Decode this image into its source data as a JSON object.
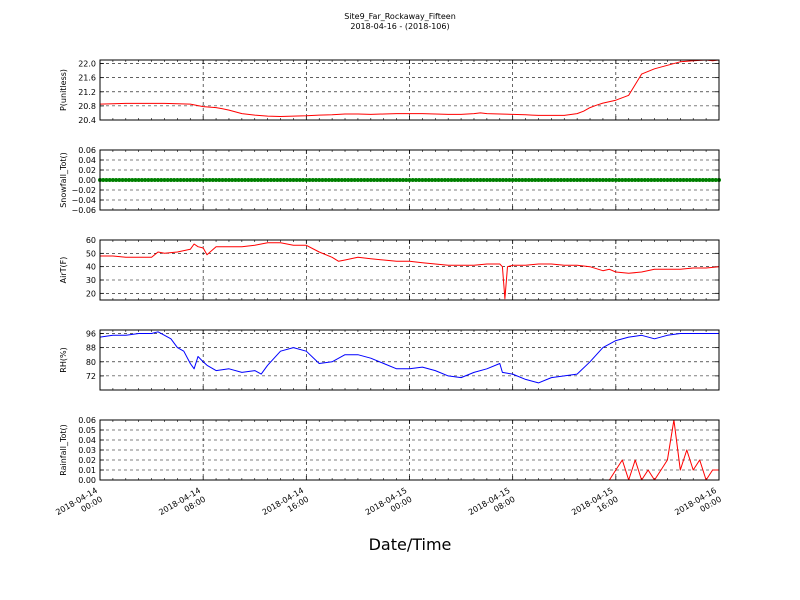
{
  "figure": {
    "title_line1": "Site9_Far_Rockaway_Fifteen",
    "title_line2": "2018-04-16 - (2018-106)",
    "xlabel": "Date/Time"
  },
  "chart_data": [
    {
      "type": "line",
      "ylabel": "P(unitless)",
      "ylim": [
        20.4,
        22.1
      ],
      "yticks": [
        "20.4",
        "20.8",
        "21.2",
        "21.6",
        "22.0"
      ],
      "ytick_values": [
        20.4,
        20.8,
        21.2,
        21.6,
        22.0
      ],
      "color": "#ff0000",
      "grid": true,
      "x": [
        0,
        1,
        2,
        3,
        4,
        5,
        6,
        7,
        8,
        9,
        9.5,
        10,
        11,
        12,
        13,
        14,
        15,
        16,
        17,
        18,
        19,
        20,
        21,
        22,
        23,
        24,
        25,
        26,
        27,
        28,
        29,
        29.5,
        30,
        31,
        32,
        33,
        33.5,
        34,
        35,
        36,
        37,
        37.5,
        38,
        38.5,
        39,
        40,
        41,
        42,
        43,
        44,
        45,
        46,
        47,
        47.5,
        48
      ],
      "values": [
        20.85,
        20.86,
        20.87,
        20.87,
        20.87,
        20.87,
        20.86,
        20.85,
        20.78,
        20.75,
        20.72,
        20.68,
        20.58,
        20.54,
        20.51,
        20.5,
        20.51,
        20.52,
        20.54,
        20.55,
        20.57,
        20.57,
        20.56,
        20.57,
        20.58,
        20.58,
        20.58,
        20.57,
        20.56,
        20.56,
        20.58,
        20.6,
        20.58,
        20.57,
        20.56,
        20.55,
        20.54,
        20.53,
        20.53,
        20.53,
        20.58,
        20.65,
        20.75,
        20.82,
        20.88,
        20.96,
        21.1,
        21.7,
        21.85,
        21.95,
        22.05,
        22.08,
        22.1,
        22.08,
        22.1
      ]
    },
    {
      "type": "scatter",
      "ylabel": "Snowfall_Tot()",
      "ylim": [
        -0.06,
        0.06
      ],
      "yticks": [
        "0.06",
        "0.04",
        "0.02",
        "0.00",
        "−0.02",
        "−0.04",
        "−0.06"
      ],
      "ytick_values": [
        0.06,
        0.04,
        0.02,
        0.0,
        -0.02,
        -0.04,
        -0.06
      ],
      "color": "#008000",
      "grid": true,
      "constant_value": 0.0,
      "x_range": [
        0,
        48
      ]
    },
    {
      "type": "line",
      "ylabel": "AirT(F)",
      "ylim": [
        15,
        60
      ],
      "yticks": [
        "20",
        "30",
        "40",
        "50",
        "60"
      ],
      "ytick_values": [
        20,
        30,
        40,
        50,
        60
      ],
      "color": "#ff0000",
      "grid": true,
      "x": [
        0,
        1,
        2,
        3,
        4,
        4.5,
        5,
        6,
        7,
        7.3,
        7.6,
        8,
        8.3,
        9,
        10,
        11,
        12,
        13,
        14,
        15,
        16,
        17,
        18,
        18.5,
        19,
        20,
        21,
        22,
        23,
        24,
        25,
        26,
        27,
        28,
        29,
        30,
        31,
        31.2,
        31.4,
        31.6,
        32,
        33,
        34,
        35,
        36,
        37,
        38,
        39,
        39.5,
        40,
        41,
        42,
        43,
        44,
        45,
        46,
        47,
        48
      ],
      "values": [
        48,
        48,
        47,
        47,
        47,
        51,
        50,
        51,
        53,
        57,
        55,
        54,
        49,
        55,
        55,
        55,
        56,
        58,
        58,
        56,
        56,
        51,
        47,
        44,
        45,
        47,
        46,
        45,
        44,
        44,
        43,
        42,
        41,
        41,
        41,
        42,
        42,
        40,
        16,
        40,
        41,
        41,
        42,
        42,
        41,
        41,
        40,
        37,
        38,
        36,
        35,
        36,
        38,
        38,
        38,
        39,
        39,
        40
      ]
    },
    {
      "type": "line",
      "ylabel": "RH(%)",
      "ylim": [
        64,
        98
      ],
      "yticks": [
        "72",
        "80",
        "88",
        "96"
      ],
      "ytick_values": [
        72,
        80,
        88,
        96
      ],
      "color": "#0000ff",
      "grid": true,
      "x": [
        0,
        1,
        2,
        3,
        4,
        4.5,
        5,
        5.5,
        6,
        6.5,
        7,
        7.3,
        7.6,
        8,
        8.3,
        9,
        10,
        11,
        12,
        12.5,
        13,
        14,
        15,
        16,
        17,
        18,
        19,
        20,
        21,
        22,
        23,
        24,
        25,
        26,
        27,
        28,
        29,
        30,
        31,
        31.2,
        32,
        33,
        34,
        35,
        36,
        37,
        38,
        39,
        39.5,
        40,
        41,
        42,
        43,
        44,
        45,
        46,
        47,
        48
      ],
      "values": [
        94,
        95,
        95,
        96,
        96,
        97,
        95,
        93,
        88,
        86,
        79,
        76,
        83,
        80,
        78,
        75,
        76,
        74,
        75,
        73,
        78,
        86,
        88,
        86,
        79,
        80,
        84,
        84,
        82,
        79,
        76,
        76,
        77,
        75,
        72,
        71,
        74,
        76,
        79,
        74,
        73,
        70,
        68,
        71,
        72,
        73,
        80,
        88,
        90,
        92,
        94,
        95,
        93,
        95,
        96,
        96,
        96,
        96
      ]
    },
    {
      "type": "line",
      "ylabel": "Rainfall_Tot()",
      "ylim": [
        0.0,
        0.06
      ],
      "yticks": [
        "0.00",
        "0.01",
        "0.02",
        "0.03",
        "0.04",
        "0.05",
        "0.06"
      ],
      "ytick_values": [
        0.0,
        0.01,
        0.02,
        0.03,
        0.04,
        0.05,
        0.06
      ],
      "color": "#ff0000",
      "grid": true,
      "x": [
        0,
        39.5,
        40,
        40.5,
        41,
        41.5,
        42,
        42.5,
        43,
        43.5,
        44,
        44.5,
        45,
        45.5,
        46,
        46.5,
        47,
        47.5,
        48
      ],
      "values": [
        0,
        0,
        0.01,
        0.02,
        0,
        0.02,
        0,
        0.01,
        0,
        0.01,
        0.02,
        0.06,
        0.01,
        0.03,
        0.01,
        0.02,
        0,
        0.01,
        0.01
      ]
    }
  ],
  "x_axis": {
    "xlim": [
      0,
      48
    ],
    "tick_hours": [
      0,
      8,
      16,
      24,
      32,
      40,
      48
    ],
    "tick_labels": [
      [
        "2018-04-14",
        "00:00"
      ],
      [
        "2018-04-14",
        "08:00"
      ],
      [
        "2018-04-14",
        "16:00"
      ],
      [
        "2018-04-15",
        "00:00"
      ],
      [
        "2018-04-15",
        "08:00"
      ],
      [
        "2018-04-15",
        "16:00"
      ],
      [
        "2018-04-16",
        "00:00"
      ]
    ]
  }
}
